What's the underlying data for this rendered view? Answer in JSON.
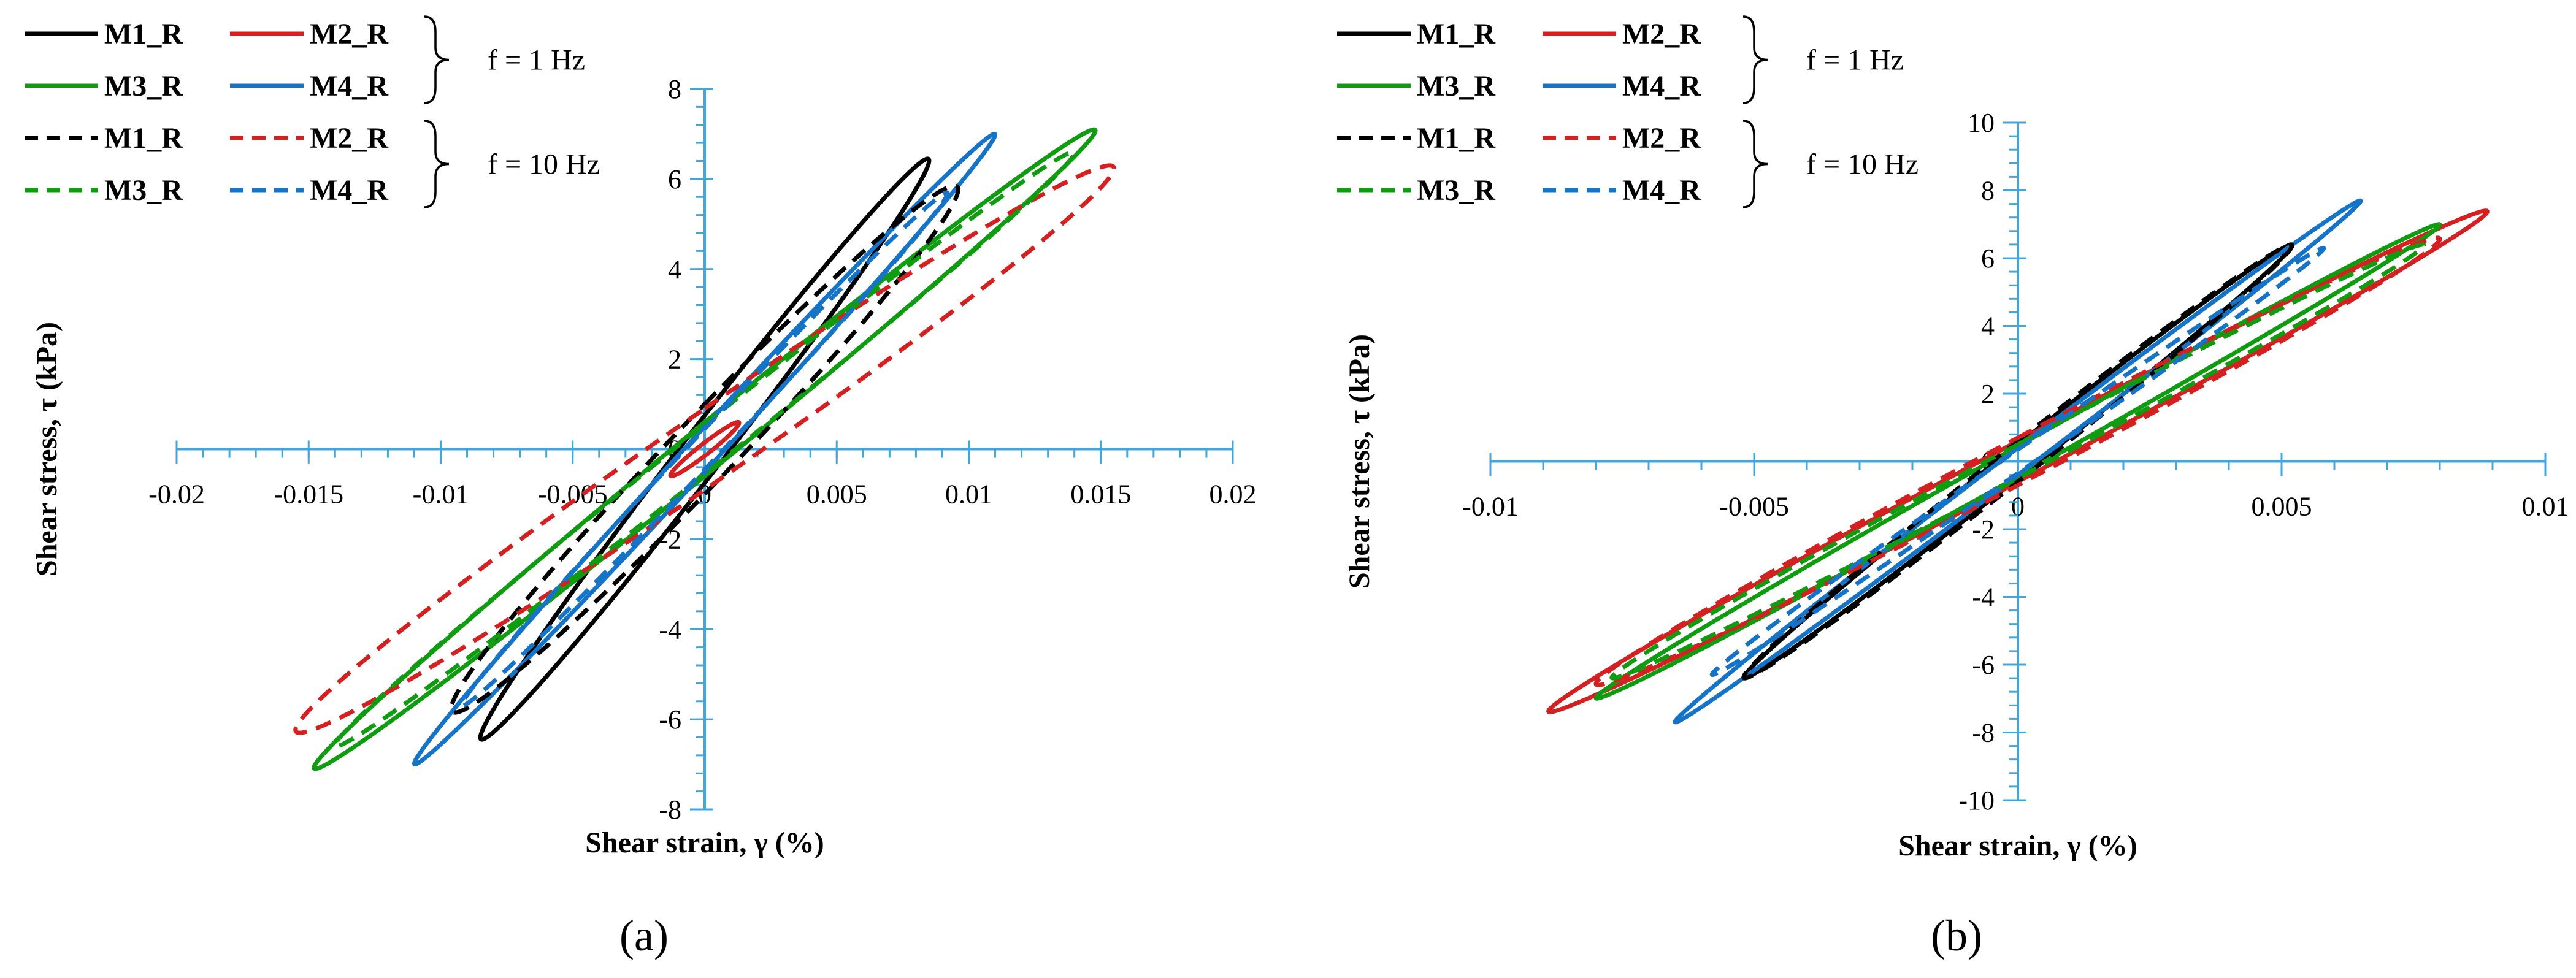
{
  "chart_data": [
    {
      "type": "line",
      "panel_label": "(a)",
      "xlabel": "Shear strain, γ (%)",
      "ylabel": "Shear stress, τ (kPa)",
      "xlim": [
        -0.02,
        0.02
      ],
      "ylim": [
        -8,
        8
      ],
      "x_ticks": [
        -0.02,
        -0.015,
        -0.01,
        -0.005,
        0,
        0.005,
        0.01,
        0.015,
        0.02
      ],
      "x_tick_labels": [
        "-0.02",
        "-0.015",
        "-0.01",
        "-0.005",
        "0",
        "0.005",
        "0.01",
        "0.015",
        "0.02"
      ],
      "y_ticks": [
        -8,
        -6,
        -4,
        -2,
        0,
        2,
        4,
        6,
        8
      ],
      "y_tick_labels": [
        "-8",
        "-6",
        "-4",
        "-2",
        "0",
        "2",
        "4",
        "6",
        "8"
      ],
      "legend": {
        "entries": [
          {
            "label": "M1_R",
            "color": "#000000",
            "dash": "solid"
          },
          {
            "label": "M2_R",
            "color": "#d42020",
            "dash": "solid"
          },
          {
            "label": "M3_R",
            "color": "#109c10",
            "dash": "solid"
          },
          {
            "label": "M4_R",
            "color": "#1574c8",
            "dash": "solid"
          },
          {
            "label": "M1_R",
            "color": "#000000",
            "dash": "dashed"
          },
          {
            "label": "M2_R",
            "color": "#d42020",
            "dash": "dashed"
          },
          {
            "label": "M3_R",
            "color": "#109c10",
            "dash": "dashed"
          },
          {
            "label": "M4_R",
            "color": "#1574c8",
            "dash": "dashed"
          }
        ],
        "group_labels": [
          "f = 1 Hz",
          "f = 10 Hz"
        ]
      },
      "series": [
        {
          "name": "M1_R",
          "frequency": "f = 1 Hz",
          "color": "#000000",
          "dash": "solid",
          "gamma_amp": 0.0085,
          "tau_amp": 6.45,
          "tau_at_zero_strain": 0.75
        },
        {
          "name": "M2_R",
          "frequency": "f = 1 Hz",
          "color": "#d42020",
          "dash": "solid",
          "gamma_amp": 0.0013,
          "tau_amp": 0.6,
          "tau_at_zero_strain": 0.15
        },
        {
          "name": "M3_R",
          "frequency": "f = 1 Hz",
          "color": "#109c10",
          "dash": "solid",
          "gamma_amp": 0.0148,
          "tau_amp": 7.1,
          "tau_at_zero_strain": 0.6
        },
        {
          "name": "M4_R",
          "frequency": "f = 1 Hz",
          "color": "#1574c8",
          "dash": "solid",
          "gamma_amp": 0.011,
          "tau_amp": 7.0,
          "tau_at_zero_strain": 0.5
        },
        {
          "name": "M1_R",
          "frequency": "f = 10 Hz",
          "color": "#000000",
          "dash": "dashed",
          "gamma_amp": 0.0096,
          "tau_amp": 5.85,
          "tau_at_zero_strain": 1.0
        },
        {
          "name": "M2_R",
          "frequency": "f = 10 Hz",
          "color": "#d42020",
          "dash": "dashed",
          "gamma_amp": 0.0155,
          "tau_amp": 6.3,
          "tau_at_zero_strain": 0.9
        },
        {
          "name": "M3_R",
          "frequency": "f = 10 Hz",
          "color": "#109c10",
          "dash": "dashed",
          "gamma_amp": 0.014,
          "tau_amp": 6.6,
          "tau_at_zero_strain": 0.55
        },
        {
          "name": "M4_R",
          "frequency": "f = 10 Hz",
          "color": "#1574c8",
          "dash": "dashed",
          "gamma_amp": 0.0092,
          "tau_amp": 5.7,
          "tau_at_zero_strain": 0.45
        }
      ]
    },
    {
      "type": "line",
      "panel_label": "(b)",
      "xlabel": "Shear strain, γ (%)",
      "ylabel": "Shear stress, τ (kPa)",
      "xlim": [
        -0.01,
        0.01
      ],
      "ylim": [
        -10,
        10
      ],
      "x_ticks": [
        -0.01,
        -0.005,
        0,
        0.005,
        0.01
      ],
      "x_tick_labels": [
        "-0.01",
        "-0.005",
        "0",
        "0.005",
        "0.01"
      ],
      "y_ticks": [
        -10,
        -8,
        -6,
        -4,
        -2,
        0,
        2,
        4,
        6,
        8,
        10
      ],
      "y_tick_labels": [
        "-10",
        "-8",
        "-6",
        "-4",
        "-2",
        "0",
        "2",
        "4",
        "6",
        "8",
        "10"
      ],
      "legend": {
        "entries": [
          {
            "label": "M1_R",
            "color": "#000000",
            "dash": "solid"
          },
          {
            "label": "M2_R",
            "color": "#d42020",
            "dash": "solid"
          },
          {
            "label": "M3_R",
            "color": "#109c10",
            "dash": "solid"
          },
          {
            "label": "M4_R",
            "color": "#1574c8",
            "dash": "solid"
          },
          {
            "label": "M1_R",
            "color": "#000000",
            "dash": "dashed"
          },
          {
            "label": "M2_R",
            "color": "#d42020",
            "dash": "dashed"
          },
          {
            "label": "M3_R",
            "color": "#109c10",
            "dash": "dashed"
          },
          {
            "label": "M4_R",
            "color": "#1574c8",
            "dash": "dashed"
          }
        ],
        "group_labels": [
          "f = 1 Hz",
          "f = 10 Hz"
        ]
      },
      "series": [
        {
          "name": "M1_R",
          "frequency": "f = 1 Hz",
          "color": "#000000",
          "dash": "solid",
          "gamma_amp": 0.0052,
          "tau_amp": 6.4,
          "tau_at_zero_strain": 0.5
        },
        {
          "name": "M2_R",
          "frequency": "f = 1 Hz",
          "color": "#d42020",
          "dash": "solid",
          "gamma_amp": 0.0089,
          "tau_amp": 7.4,
          "tau_at_zero_strain": 0.6
        },
        {
          "name": "M3_R",
          "frequency": "f = 1 Hz",
          "color": "#109c10",
          "dash": "solid",
          "gamma_amp": 0.008,
          "tau_amp": 7.0,
          "tau_at_zero_strain": 0.45
        },
        {
          "name": "M4_R",
          "frequency": "f = 1 Hz",
          "color": "#1574c8",
          "dash": "solid",
          "gamma_amp": 0.0065,
          "tau_amp": 7.7,
          "tau_at_zero_strain": 0.4
        },
        {
          "name": "M1_R",
          "frequency": "f = 10 Hz",
          "color": "#000000",
          "dash": "dashed",
          "gamma_amp": 0.0052,
          "tau_amp": 6.4,
          "tau_at_zero_strain": 0.6
        },
        {
          "name": "M2_R",
          "frequency": "f = 10 Hz",
          "color": "#d42020",
          "dash": "dashed",
          "gamma_amp": 0.008,
          "tau_amp": 6.6,
          "tau_at_zero_strain": 0.7
        },
        {
          "name": "M3_R",
          "frequency": "f = 10 Hz",
          "color": "#109c10",
          "dash": "dashed",
          "gamma_amp": 0.0077,
          "tau_amp": 6.4,
          "tau_at_zero_strain": 0.5
        },
        {
          "name": "M4_R",
          "frequency": "f = 10 Hz",
          "color": "#1574c8",
          "dash": "dashed",
          "gamma_amp": 0.0058,
          "tau_amp": 6.3,
          "tau_at_zero_strain": 0.35
        }
      ]
    }
  ]
}
